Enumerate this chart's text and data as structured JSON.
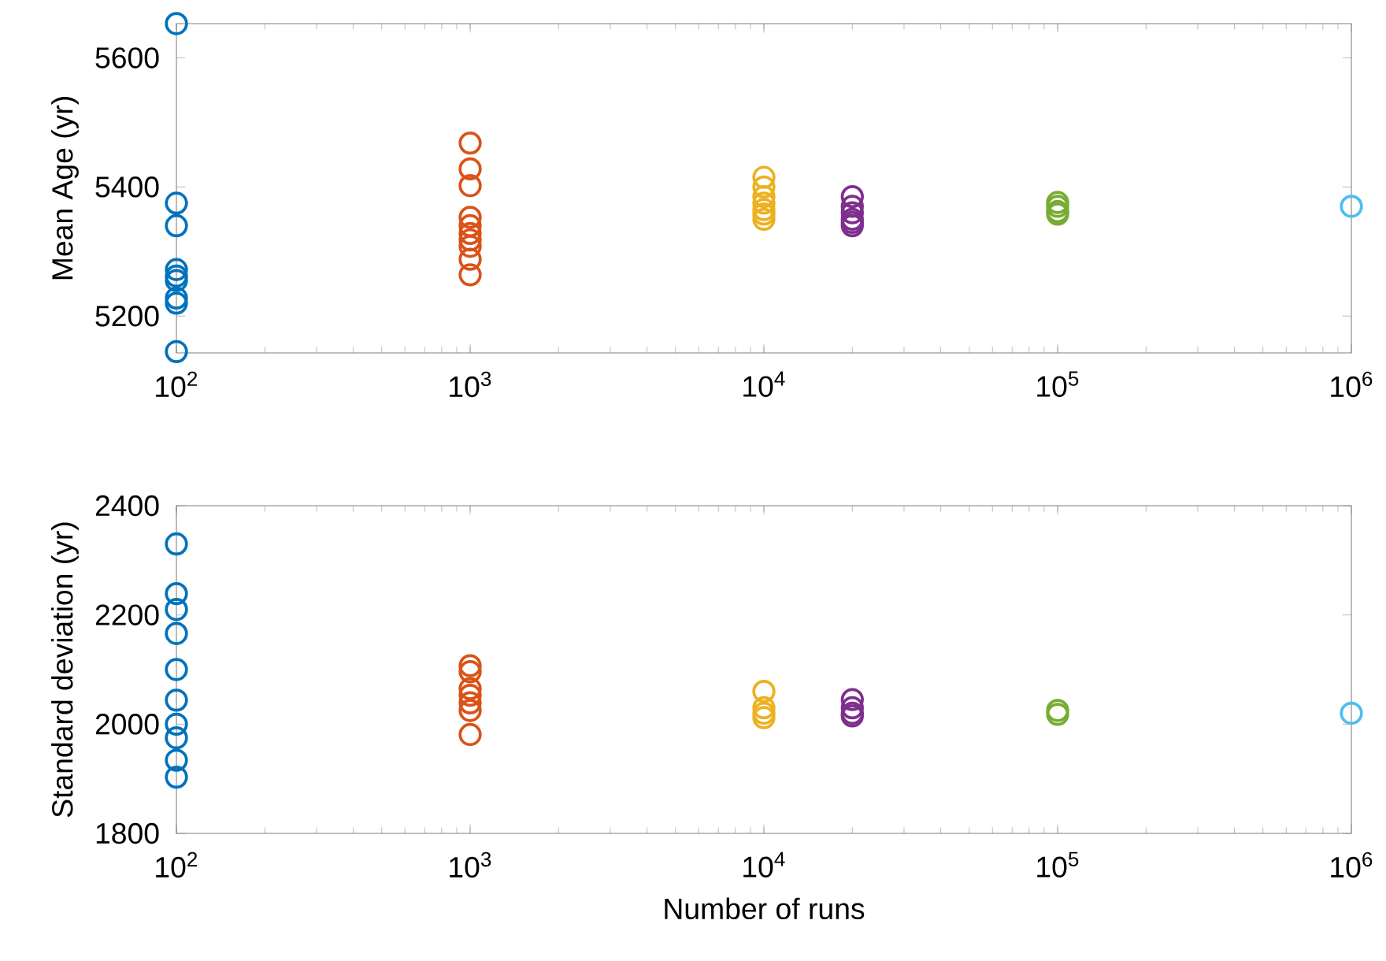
{
  "chart_data": [
    {
      "type": "scatter",
      "ylabel": "Mean Age (yr)",
      "log": "x",
      "marker": "circle",
      "xlim": [
        100,
        1000000
      ],
      "ylim": [
        5143,
        5653
      ],
      "xticks": [
        {
          "value": 100,
          "label": "10$^{2}$"
        },
        {
          "value": 1000,
          "label": "10$^{3}$"
        },
        {
          "value": 10000,
          "label": "10$^{4}$"
        },
        {
          "value": 100000,
          "label": "10$^{5}$"
        },
        {
          "value": 1000000,
          "label": "10$^{6}$"
        }
      ],
      "yticks": [
        5200,
        5400,
        5600
      ],
      "series": [
        {
          "color": "#0072bd",
          "x": [
            100,
            100,
            100,
            100,
            100,
            100,
            100,
            100,
            100
          ],
          "values": [
            5653,
            5375,
            5340,
            5272,
            5262,
            5255,
            5228,
            5220,
            5145
          ]
        },
        {
          "color": "#d95319",
          "x": [
            1000,
            1000,
            1000,
            1000,
            1000,
            1000,
            1000,
            1000,
            1000,
            1000
          ],
          "values": [
            5468,
            5428,
            5402,
            5353,
            5340,
            5328,
            5318,
            5308,
            5288,
            5264
          ]
        },
        {
          "color": "#edb120",
          "x": [
            10000,
            10000,
            10000,
            10000,
            10000,
            10000,
            10000
          ],
          "values": [
            5415,
            5400,
            5385,
            5375,
            5365,
            5358,
            5350
          ]
        },
        {
          "color": "#7e2f8e",
          "x": [
            20000,
            20000,
            20000,
            20000,
            20000,
            20000
          ],
          "values": [
            5385,
            5370,
            5360,
            5350,
            5345,
            5340
          ]
        },
        {
          "color": "#77ac30",
          "x": [
            100000,
            100000,
            100000,
            100000
          ],
          "values": [
            5376,
            5370,
            5362,
            5358
          ]
        },
        {
          "color": "#4dbeee",
          "x": [
            1000000
          ],
          "values": [
            5370
          ]
        }
      ]
    },
    {
      "type": "scatter",
      "xlabel": "Number of runs",
      "ylabel": "Standard deviation (yr)",
      "log": "x",
      "marker": "circle",
      "xlim": [
        100,
        1000000
      ],
      "ylim": [
        1800,
        2400
      ],
      "xticks": [
        {
          "value": 100,
          "label": "10$^{2}$"
        },
        {
          "value": 1000,
          "label": "10$^{3}$"
        },
        {
          "value": 10000,
          "label": "10$^{4}$"
        },
        {
          "value": 100000,
          "label": "10$^{5}$"
        },
        {
          "value": 1000000,
          "label": "10$^{6}$"
        }
      ],
      "yticks": [
        1800,
        2000,
        2200,
        2400
      ],
      "series": [
        {
          "color": "#0072bd",
          "x": [
            100,
            100,
            100,
            100,
            100,
            100,
            100,
            100,
            100,
            100
          ],
          "values": [
            2330,
            2239,
            2210,
            2166,
            2100,
            2044,
            2000,
            1975,
            1934,
            1903
          ]
        },
        {
          "color": "#d95319",
          "x": [
            1000,
            1000,
            1000,
            1000,
            1000,
            1000,
            1000
          ],
          "values": [
            2107,
            2096,
            2065,
            2053,
            2039,
            2025,
            1981
          ]
        },
        {
          "color": "#edb120",
          "x": [
            10000,
            10000,
            10000,
            10000
          ],
          "values": [
            2060,
            2030,
            2020,
            2012
          ]
        },
        {
          "color": "#7e2f8e",
          "x": [
            20000,
            20000,
            20000,
            20000
          ],
          "values": [
            2045,
            2030,
            2020,
            2015
          ]
        },
        {
          "color": "#77ac30",
          "x": [
            100000,
            100000
          ],
          "values": [
            2025,
            2018
          ]
        },
        {
          "color": "#4dbeee",
          "x": [
            1000000
          ],
          "values": [
            2020
          ]
        }
      ]
    }
  ]
}
